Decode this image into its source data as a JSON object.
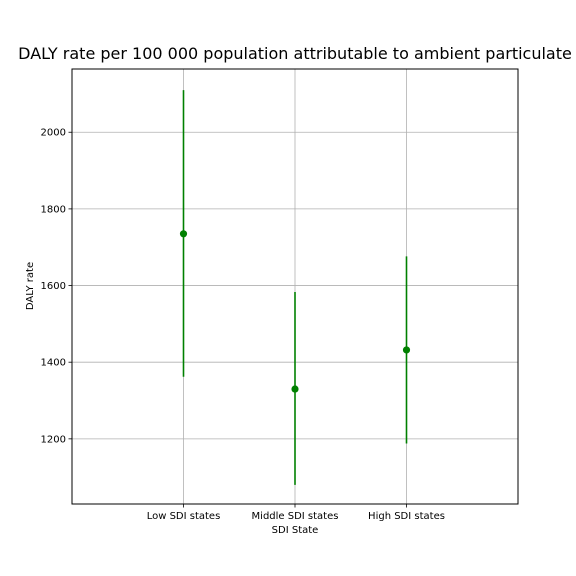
{
  "chart_data": {
    "type": "scatter",
    "title": "DALY rate per 100 000 population attributable to ambient particulate",
    "xlabel": "SDI State",
    "ylabel": "DALY rate",
    "categories": [
      "Low SDI states",
      "Middle SDI states",
      "High SDI states"
    ],
    "values": [
      1735,
      1330,
      1432
    ],
    "lower": [
      1362,
      1080,
      1188
    ],
    "upper": [
      2110,
      1583,
      1676
    ],
    "yticks": [
      1200,
      1400,
      1600,
      1800,
      2000
    ],
    "ylim": [
      1030,
      2165
    ],
    "grid": true,
    "color": "#008000"
  }
}
